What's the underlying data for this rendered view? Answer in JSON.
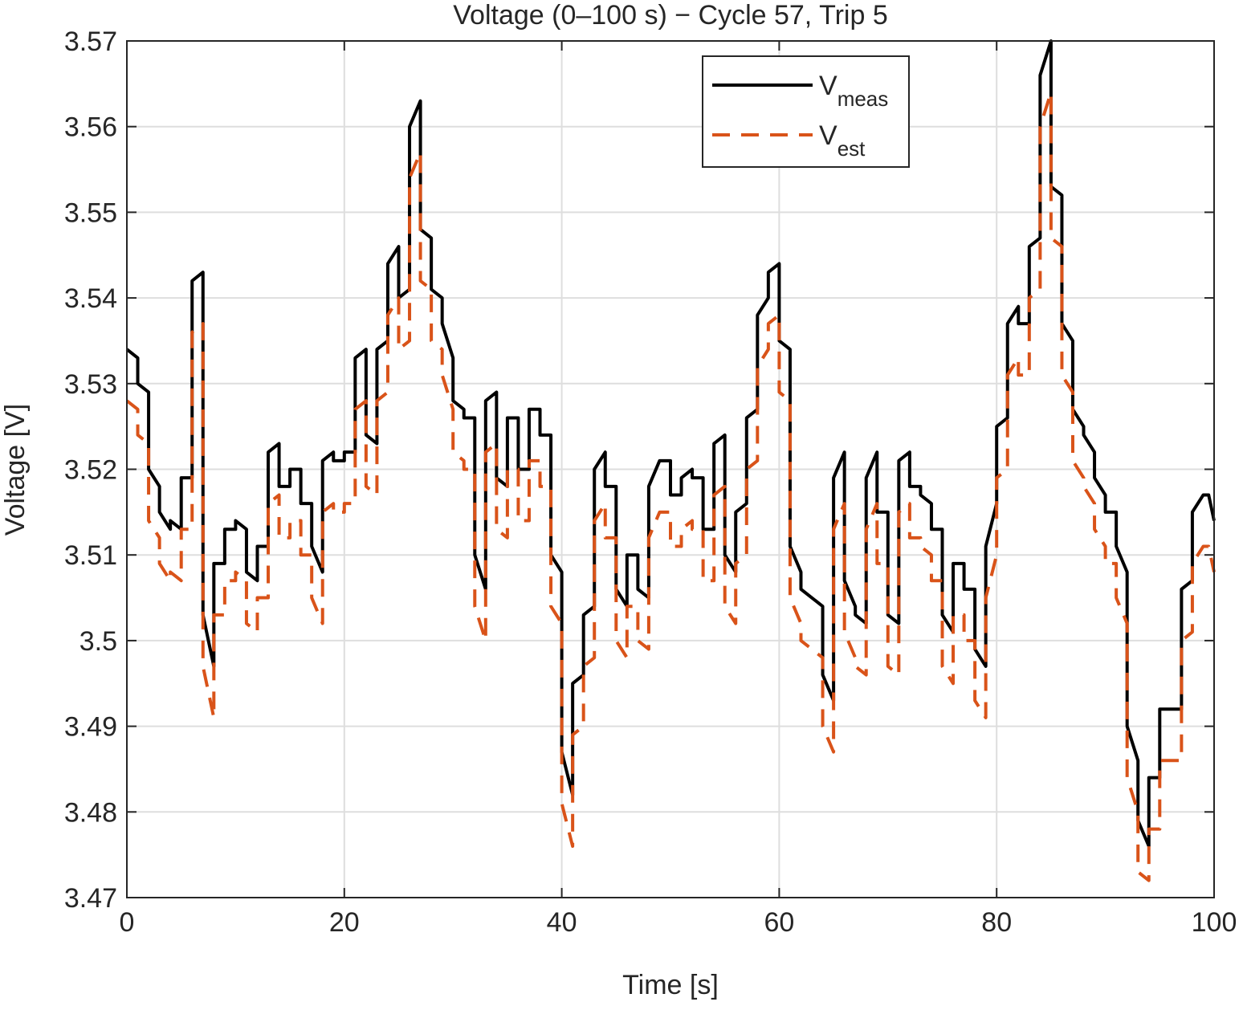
{
  "chart_data": {
    "type": "line",
    "title": "Voltage (0–100 s) − Cycle 57, Trip 5",
    "x_label": "Time [s]",
    "y_label": "Voltage [V]",
    "xlim": [
      0,
      100
    ],
    "xticks": [
      0,
      20,
      40,
      60,
      80,
      100
    ],
    "ylim": [
      3.47,
      3.57
    ],
    "yticks": [
      3.47,
      3.48,
      3.49,
      3.5,
      3.51,
      3.52,
      3.53,
      3.54,
      3.55,
      3.56,
      3.57
    ],
    "grid": true,
    "legend_position": "top-right",
    "x": [
      0,
      1,
      1,
      2,
      2,
      3,
      3,
      4,
      4,
      5,
      5,
      6,
      6,
      7,
      7,
      8,
      8,
      9,
      9,
      10,
      10,
      11,
      11,
      12,
      12,
      13,
      13,
      14,
      14,
      15,
      15,
      16,
      16,
      17,
      17,
      18,
      18,
      19,
      19,
      20,
      20,
      21,
      21,
      22,
      22,
      23,
      23,
      24,
      24,
      25,
      25,
      26,
      26,
      27,
      27,
      28,
      28,
      29,
      29,
      30,
      30,
      31,
      31,
      32,
      32,
      33,
      33,
      34,
      34,
      35,
      35,
      36,
      36,
      37,
      37,
      38,
      38,
      39,
      39,
      40,
      40,
      41,
      41,
      42,
      42,
      43,
      43,
      44,
      44,
      45,
      45,
      46,
      46,
      47,
      47,
      48,
      48,
      49,
      49,
      50,
      50,
      51,
      51,
      52,
      52,
      53,
      53,
      54,
      54,
      55,
      55,
      56,
      56,
      57,
      57,
      58,
      58,
      59,
      59,
      60,
      60,
      61,
      61,
      62,
      62,
      63,
      63,
      64,
      64,
      65,
      65,
      66,
      66,
      67,
      67,
      68,
      68,
      69,
      69,
      70,
      70,
      71,
      71,
      72,
      72,
      73,
      73,
      74,
      74,
      75,
      75,
      76,
      76,
      77,
      77,
      78,
      78,
      79,
      79,
      80,
      80,
      81,
      81,
      82,
      82,
      83,
      83,
      84,
      84,
      85,
      85,
      86,
      86,
      87,
      87,
      88,
      88,
      89,
      89,
      90,
      90,
      91,
      91,
      92,
      92,
      93,
      93,
      94,
      94,
      95,
      95,
      96,
      96,
      97,
      97,
      98,
      98,
      99,
      99.5,
      100
    ],
    "series": [
      {
        "name": "V",
        "name_sub": "meas",
        "color": "#000000",
        "dash": false,
        "values": [
          3.534,
          3.533,
          3.53,
          3.529,
          3.52,
          3.518,
          3.515,
          3.513,
          3.514,
          3.513,
          3.519,
          3.519,
          3.542,
          3.543,
          3.503,
          3.497,
          3.509,
          3.509,
          3.513,
          3.513,
          3.514,
          3.513,
          3.508,
          3.507,
          3.511,
          3.511,
          3.522,
          3.523,
          3.518,
          3.518,
          3.52,
          3.52,
          3.516,
          3.516,
          3.511,
          3.508,
          3.521,
          3.522,
          3.521,
          3.521,
          3.522,
          3.522,
          3.533,
          3.534,
          3.524,
          3.523,
          3.534,
          3.535,
          3.544,
          3.546,
          3.54,
          3.541,
          3.56,
          3.563,
          3.548,
          3.547,
          3.541,
          3.54,
          3.537,
          3.533,
          3.528,
          3.527,
          3.526,
          3.526,
          3.51,
          3.506,
          3.528,
          3.529,
          3.519,
          3.518,
          3.526,
          3.526,
          3.52,
          3.52,
          3.527,
          3.527,
          3.524,
          3.524,
          3.51,
          3.508,
          3.487,
          3.482,
          3.495,
          3.496,
          3.503,
          3.504,
          3.52,
          3.522,
          3.518,
          3.518,
          3.506,
          3.504,
          3.51,
          3.51,
          3.506,
          3.505,
          3.518,
          3.521,
          3.521,
          3.521,
          3.517,
          3.517,
          3.519,
          3.52,
          3.519,
          3.519,
          3.513,
          3.513,
          3.523,
          3.524,
          3.51,
          3.508,
          3.515,
          3.516,
          3.526,
          3.527,
          3.538,
          3.54,
          3.543,
          3.544,
          3.535,
          3.534,
          3.511,
          3.508,
          3.506,
          3.505,
          3.505,
          3.504,
          3.496,
          3.493,
          3.519,
          3.522,
          3.507,
          3.504,
          3.503,
          3.502,
          3.519,
          3.522,
          3.515,
          3.515,
          3.503,
          3.502,
          3.521,
          3.522,
          3.518,
          3.518,
          3.517,
          3.516,
          3.513,
          3.513,
          3.503,
          3.501,
          3.509,
          3.509,
          3.506,
          3.506,
          3.499,
          3.497,
          3.511,
          3.516,
          3.525,
          3.526,
          3.537,
          3.539,
          3.537,
          3.537,
          3.546,
          3.547,
          3.566,
          3.57,
          3.553,
          3.552,
          3.537,
          3.535,
          3.527,
          3.525,
          3.524,
          3.522,
          3.519,
          3.517,
          3.515,
          3.515,
          3.511,
          3.508,
          3.49,
          3.486,
          3.479,
          3.476,
          3.484,
          3.484,
          3.492,
          3.492,
          3.492,
          3.492,
          3.506,
          3.507,
          3.515,
          3.517,
          3.517,
          3.514
        ]
      },
      {
        "name": "V",
        "name_sub": "est",
        "color": "#D95319",
        "dash": true,
        "values": [
          3.528,
          3.527,
          3.524,
          3.523,
          3.514,
          3.512,
          3.509,
          3.507,
          3.508,
          3.507,
          3.513,
          3.513,
          3.536,
          3.537,
          3.497,
          3.491,
          3.503,
          3.503,
          3.507,
          3.507,
          3.508,
          3.507,
          3.502,
          3.501,
          3.505,
          3.505,
          3.516,
          3.517,
          3.512,
          3.512,
          3.514,
          3.514,
          3.51,
          3.51,
          3.505,
          3.502,
          3.515,
          3.516,
          3.515,
          3.515,
          3.516,
          3.516,
          3.527,
          3.528,
          3.518,
          3.517,
          3.528,
          3.529,
          3.538,
          3.54,
          3.534,
          3.535,
          3.554,
          3.557,
          3.542,
          3.541,
          3.535,
          3.534,
          3.531,
          3.527,
          3.522,
          3.521,
          3.52,
          3.52,
          3.504,
          3.5,
          3.522,
          3.523,
          3.513,
          3.512,
          3.52,
          3.52,
          3.514,
          3.514,
          3.521,
          3.521,
          3.518,
          3.518,
          3.504,
          3.502,
          3.481,
          3.476,
          3.489,
          3.49,
          3.497,
          3.498,
          3.514,
          3.516,
          3.512,
          3.512,
          3.5,
          3.498,
          3.504,
          3.504,
          3.5,
          3.499,
          3.512,
          3.515,
          3.515,
          3.515,
          3.511,
          3.511,
          3.513,
          3.514,
          3.513,
          3.513,
          3.507,
          3.507,
          3.517,
          3.518,
          3.504,
          3.502,
          3.509,
          3.51,
          3.52,
          3.521,
          3.532,
          3.534,
          3.537,
          3.538,
          3.529,
          3.528,
          3.505,
          3.502,
          3.5,
          3.499,
          3.499,
          3.498,
          3.49,
          3.487,
          3.513,
          3.516,
          3.501,
          3.498,
          3.497,
          3.496,
          3.513,
          3.516,
          3.509,
          3.509,
          3.497,
          3.496,
          3.515,
          3.516,
          3.512,
          3.512,
          3.511,
          3.51,
          3.507,
          3.507,
          3.497,
          3.495,
          3.503,
          3.503,
          3.5,
          3.5,
          3.493,
          3.491,
          3.505,
          3.51,
          3.519,
          3.52,
          3.531,
          3.533,
          3.531,
          3.531,
          3.54,
          3.541,
          3.56,
          3.564,
          3.547,
          3.546,
          3.531,
          3.529,
          3.521,
          3.519,
          3.518,
          3.516,
          3.513,
          3.511,
          3.509,
          3.509,
          3.505,
          3.502,
          3.484,
          3.48,
          3.473,
          3.472,
          3.478,
          3.478,
          3.486,
          3.486,
          3.486,
          3.486,
          3.5,
          3.501,
          3.509,
          3.511,
          3.511,
          3.508
        ]
      }
    ]
  }
}
